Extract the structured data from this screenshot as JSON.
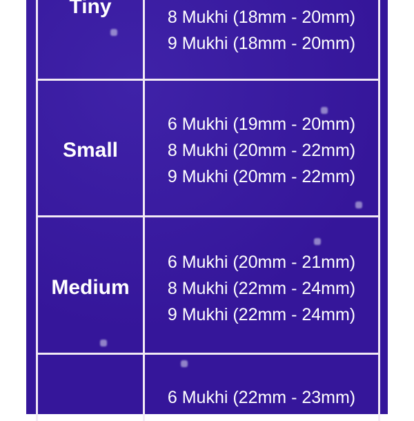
{
  "colors": {
    "background": "#3a1a9c",
    "grid": "#f2eaf5",
    "text": "#ffffff"
  },
  "rows": [
    {
      "label": "Tiny",
      "sizes": [
        "8 Mukhi (18mm - 20mm)",
        "9 Mukhi (18mm - 20mm)"
      ]
    },
    {
      "label": "Small",
      "sizes": [
        "6 Mukhi (19mm - 20mm)",
        "8 Mukhi (20mm - 22mm)",
        "9 Mukhi (20mm - 22mm)"
      ]
    },
    {
      "label": "Medium",
      "sizes": [
        "6 Mukhi (20mm - 21mm)",
        "8 Mukhi (22mm - 24mm)",
        "9 Mukhi (22mm - 24mm)"
      ]
    },
    {
      "label": "",
      "sizes": [
        "6 Mukhi (22mm - 23mm)"
      ]
    }
  ]
}
